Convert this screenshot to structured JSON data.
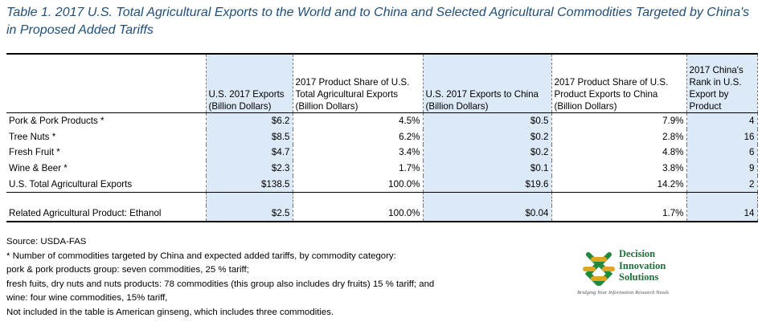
{
  "title": "Table 1. 2017 U.S. Total Agricultural Exports to the World and to China and Selected Agricultural Commodities Targeted by China's in Proposed Added Tariffs",
  "table": {
    "headers": [
      "",
      "U.S. 2017 Exports (Billion Dollars)",
      "2017 Product Share of U.S. Total Agricultural Exports (Billion Dollars)",
      "U.S. 2017 Exports to China (Billion Dollars)",
      "2017 Product Share of U.S. Product Exports to China (Billion Dollars)",
      "2017 China's Rank in U.S. Export by Product"
    ],
    "header_lines": [
      [
        ""
      ],
      [
        "U.S. 2017 Exports",
        "(Billion Dollars)"
      ],
      [
        "2017 Product Share of U.S.",
        "Total Agricultural Exports",
        "(Billion Dollars)"
      ],
      [
        "U.S. 2017 Exports to China",
        "(Billion Dollars)"
      ],
      [
        "2017 Product Share of U.S.",
        "Product Exports to China",
        "(Billion Dollars)"
      ],
      [
        "2017 China's",
        "Rank in U.S.",
        "Export by",
        "Product"
      ]
    ],
    "rows": [
      [
        "Pork & Pork Products *",
        "$6.2",
        "4.5%",
        "$0.5",
        "7.9%",
        "4"
      ],
      [
        "Tree Nuts *",
        "$8.5",
        "6.2%",
        "$0.2",
        "2.8%",
        "16"
      ],
      [
        "Fresh Fruit *",
        "$4.7",
        "3.4%",
        "$0.2",
        "4.8%",
        "6"
      ],
      [
        "Wine & Beer *",
        "$2.3",
        "1.7%",
        "$0.1",
        "3.8%",
        "9"
      ],
      [
        "U.S. Total Agricultural Exports",
        "$138.5",
        "100.0%",
        "$19.6",
        "14.2%",
        "2"
      ]
    ],
    "related_row": [
      "Related Agricultural Product: Ethanol",
      "$2.5",
      "100.0%",
      "$0.04",
      "1.7%",
      "14"
    ]
  },
  "notes": [
    "Source: USDA-FAS",
    "* Number of commodities targeted by China and expected added tariffs, by commodity category:",
    "pork & pork products group: seven commodities, 25 % tariff;",
    "fresh fuits, dry nuts and nuts products:  78 commodities (this group also includes dry fruits) 15 % tariff; and",
    "wine: four wine commodities, 15% tariff,",
    "Not included in the table is American ginseng, which includes three commodities."
  ],
  "logo": {
    "lines": [
      "Decision",
      "Innovation",
      "Solutions"
    ],
    "tagline": "Bridging Your Information Research Needs",
    "icon": "chain-link-logo-icon",
    "colors": {
      "green": "#1f8a3b",
      "gold": "#e0a526",
      "text": "#1f6f3a"
    }
  },
  "colors": {
    "header_shade": "#dce9f7",
    "title": "#1f4e79"
  }
}
